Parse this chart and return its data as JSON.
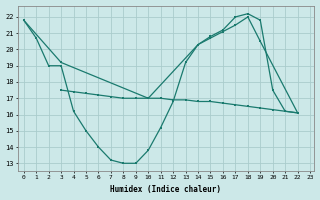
{
  "background_color": "#cce8e8",
  "grid_color": "#aacccc",
  "line_color": "#1a7a6e",
  "xlabel": "Humidex (Indice chaleur)",
  "xlim": [
    -0.5,
    23.3
  ],
  "ylim": [
    12.5,
    22.7
  ],
  "yticks": [
    13,
    14,
    15,
    16,
    17,
    18,
    19,
    20,
    21,
    22
  ],
  "xticks": [
    0,
    1,
    2,
    3,
    4,
    5,
    6,
    7,
    8,
    9,
    10,
    11,
    12,
    13,
    14,
    15,
    16,
    17,
    18,
    19,
    20,
    21,
    22,
    23
  ],
  "lines": [
    {
      "x": [
        0,
        1,
        2,
        3,
        4,
        5,
        6,
        7,
        8,
        9,
        10,
        11,
        12,
        13,
        14,
        15,
        16,
        17,
        18,
        19,
        20,
        21,
        22
      ],
      "y": [
        21.8,
        20.7,
        19.0,
        19.0,
        16.2,
        15.0,
        14.0,
        13.2,
        13.0,
        13.0,
        13.8,
        15.2,
        16.8,
        19.2,
        20.3,
        20.8,
        21.2,
        22.0,
        22.2,
        21.8,
        17.5,
        16.2,
        16.1
      ]
    },
    {
      "comment": "upper diagonal line - sparse markers: 0,3,10,14,15,16,17,18,19,22",
      "x": [
        0,
        3,
        10,
        14,
        15,
        16,
        17,
        18,
        19,
        22
      ],
      "y": [
        21.8,
        19.2,
        17.0,
        20.3,
        20.7,
        21.1,
        21.5,
        22.0,
        20.5,
        16.1
      ]
    },
    {
      "x": [
        3,
        4,
        5,
        6,
        7,
        8,
        9,
        10,
        11,
        12,
        13,
        14,
        15,
        16,
        17,
        18,
        19,
        20,
        21,
        22
      ],
      "y": [
        17.5,
        17.4,
        17.3,
        17.2,
        17.1,
        17.0,
        17.0,
        17.0,
        17.0,
        16.9,
        16.9,
        16.8,
        16.8,
        16.7,
        16.6,
        16.5,
        16.4,
        16.3,
        16.2,
        16.1
      ]
    }
  ]
}
